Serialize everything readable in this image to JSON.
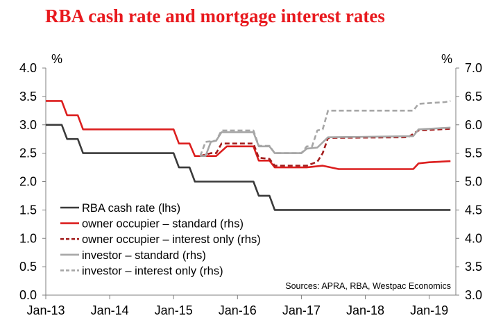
{
  "chart_data": {
    "type": "line",
    "title": "RBA cash rate and mortgage interest rates",
    "unit_left": "%",
    "unit_right": "%",
    "source": "Sources: APRA, RBA, Westpac Economics",
    "x_axis": {
      "start": "2013-01",
      "end": "2019-06",
      "tick_labels": [
        "Jan-13",
        "Jan-14",
        "Jan-15",
        "Jan-16",
        "Jan-17",
        "Jan-18",
        "Jan-19"
      ],
      "tick_dates": [
        "2013-01",
        "2014-01",
        "2015-01",
        "2016-01",
        "2017-01",
        "2018-01",
        "2019-01"
      ]
    },
    "y_left": {
      "min": 0,
      "max": 4,
      "ticks": [
        "0.0",
        "0.5",
        "1.0",
        "1.5",
        "2.0",
        "2.5",
        "3.0",
        "3.5",
        "4.0"
      ]
    },
    "y_right": {
      "min": 3,
      "max": 7,
      "ticks": [
        "3.0",
        "3.5",
        "4.0",
        "4.5",
        "5.0",
        "5.5",
        "6.0",
        "6.5",
        "7.0"
      ]
    },
    "grid": false,
    "legend_position": "bottom-left",
    "series": [
      {
        "name": "RBA cash rate (lhs)",
        "axis": "left",
        "color": "#3a3a3a",
        "dash": "solid",
        "points": [
          [
            "2013-01",
            3.0
          ],
          [
            "2013-04",
            3.0
          ],
          [
            "2013-05",
            2.75
          ],
          [
            "2013-07",
            2.75
          ],
          [
            "2013-08",
            2.5
          ],
          [
            "2015-01",
            2.5
          ],
          [
            "2015-02",
            2.25
          ],
          [
            "2015-04",
            2.25
          ],
          [
            "2015-05",
            2.0
          ],
          [
            "2016-04",
            2.0
          ],
          [
            "2016-05",
            1.75
          ],
          [
            "2016-07",
            1.75
          ],
          [
            "2016-08",
            1.5
          ],
          [
            "2019-05",
            1.5
          ]
        ]
      },
      {
        "name": "owner occupier – standard (rhs)",
        "axis": "right",
        "color": "#dc1e1e",
        "dash": "solid",
        "points": [
          [
            "2013-01",
            6.42
          ],
          [
            "2013-04",
            6.42
          ],
          [
            "2013-05",
            6.17
          ],
          [
            "2013-07",
            6.17
          ],
          [
            "2013-08",
            5.92
          ],
          [
            "2015-01",
            5.92
          ],
          [
            "2015-02",
            5.67
          ],
          [
            "2015-04",
            5.67
          ],
          [
            "2015-05",
            5.45
          ],
          [
            "2015-09",
            5.45
          ],
          [
            "2015-11",
            5.62
          ],
          [
            "2016-04",
            5.62
          ],
          [
            "2016-05",
            5.37
          ],
          [
            "2016-07",
            5.37
          ],
          [
            "2016-08",
            5.25
          ],
          [
            "2017-02",
            5.25
          ],
          [
            "2017-05",
            5.28
          ],
          [
            "2017-08",
            5.22
          ],
          [
            "2018-10",
            5.22
          ],
          [
            "2018-11",
            5.32
          ],
          [
            "2019-01",
            5.34
          ],
          [
            "2019-05",
            5.36
          ]
        ]
      },
      {
        "name": "owner occupier – interest only (rhs)",
        "axis": "right",
        "color": "#a31d1d",
        "dash": "dashed",
        "points": [
          [
            "2015-06",
            5.45
          ],
          [
            "2015-08",
            5.5
          ],
          [
            "2015-09",
            5.5
          ],
          [
            "2015-10",
            5.67
          ],
          [
            "2015-11",
            5.67
          ],
          [
            "2016-04",
            5.67
          ],
          [
            "2016-05",
            5.42
          ],
          [
            "2016-07",
            5.4
          ],
          [
            "2016-08",
            5.28
          ],
          [
            "2017-02",
            5.28
          ],
          [
            "2017-04",
            5.35
          ],
          [
            "2017-05",
            5.5
          ],
          [
            "2017-06",
            5.77
          ],
          [
            "2018-09",
            5.78
          ],
          [
            "2018-11",
            5.9
          ],
          [
            "2019-05",
            5.93
          ]
        ]
      },
      {
        "name": "investor – standard (rhs)",
        "axis": "right",
        "color": "#a6a6a6",
        "dash": "solid",
        "points": [
          [
            "2015-06",
            5.45
          ],
          [
            "2015-07",
            5.45
          ],
          [
            "2015-08",
            5.7
          ],
          [
            "2015-09",
            5.72
          ],
          [
            "2015-10",
            5.87
          ],
          [
            "2016-04",
            5.87
          ],
          [
            "2016-05",
            5.62
          ],
          [
            "2016-07",
            5.62
          ],
          [
            "2016-08",
            5.5
          ],
          [
            "2017-01",
            5.5
          ],
          [
            "2017-02",
            5.58
          ],
          [
            "2017-04",
            5.6
          ],
          [
            "2017-06",
            5.78
          ],
          [
            "2018-10",
            5.8
          ],
          [
            "2018-11",
            5.92
          ],
          [
            "2019-05",
            5.95
          ]
        ]
      },
      {
        "name": "investor – interest only (rhs)",
        "axis": "right",
        "color": "#a6a6a6",
        "dash": "dashed",
        "points": [
          [
            "2015-06",
            5.45
          ],
          [
            "2015-07",
            5.7
          ],
          [
            "2015-09",
            5.72
          ],
          [
            "2015-10",
            5.9
          ],
          [
            "2016-04",
            5.9
          ],
          [
            "2016-05",
            5.63
          ],
          [
            "2016-07",
            5.63
          ],
          [
            "2016-08",
            5.5
          ],
          [
            "2017-01",
            5.5
          ],
          [
            "2017-02",
            5.62
          ],
          [
            "2017-03",
            5.62
          ],
          [
            "2017-04",
            5.9
          ],
          [
            "2017-05",
            5.92
          ],
          [
            "2017-06",
            6.25
          ],
          [
            "2018-10",
            6.25
          ],
          [
            "2018-11",
            6.37
          ],
          [
            "2019-04",
            6.4
          ],
          [
            "2019-05",
            6.42
          ]
        ]
      }
    ]
  }
}
